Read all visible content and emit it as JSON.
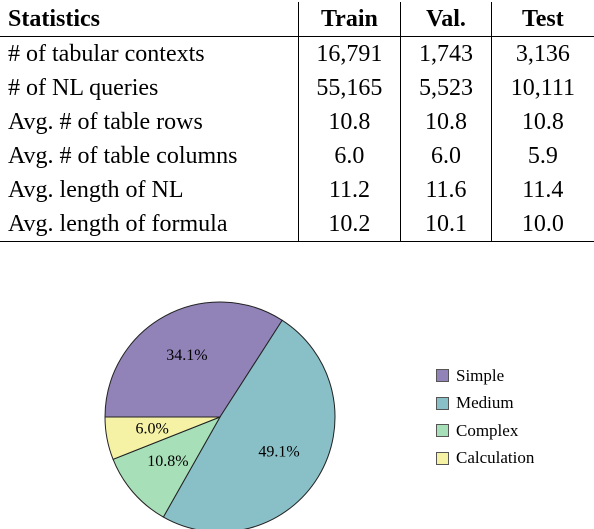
{
  "table": {
    "headers": [
      "Statistics",
      "Train",
      "Val.",
      "Test"
    ],
    "rows": [
      [
        "# of tabular contexts",
        "16,791",
        "1,743",
        "3,136"
      ],
      [
        "# of NL queries",
        "55,165",
        "5,523",
        "10,111"
      ],
      [
        "Avg. # of table rows",
        "10.8",
        "10.8",
        "10.8"
      ],
      [
        "Avg. # of table columns",
        "6.0",
        "6.0",
        "5.9"
      ],
      [
        "Avg. length of NL",
        "11.2",
        "11.6",
        "11.4"
      ],
      [
        "Avg. length of formula",
        "10.2",
        "10.1",
        "10.0"
      ]
    ]
  },
  "chart_data": {
    "type": "pie",
    "categories": [
      "Simple",
      "Medium",
      "Complex",
      "Calculation"
    ],
    "values": [
      34.1,
      49.1,
      10.8,
      6.0
    ],
    "labels": [
      "34.1%",
      "49.1%",
      "10.8%",
      "6.0%"
    ],
    "colors": [
      "#9183b8",
      "#89bfc6",
      "#a7e0b8",
      "#f5f2a6"
    ],
    "start_angle_deg": 180,
    "direction": "clockwise",
    "legend_position": "right"
  }
}
